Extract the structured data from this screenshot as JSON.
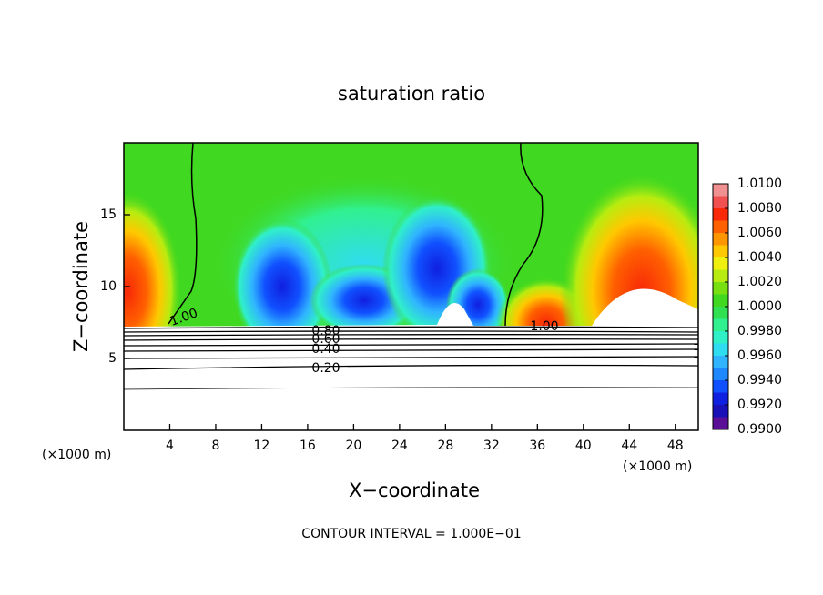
{
  "chart_data": {
    "type": "contour",
    "title": "saturation ratio",
    "x_label": "X−coordinate",
    "y_label": "Z−coordinate",
    "x_unit": "(×1000 m)",
    "y_unit": "(×1000 m)",
    "footnote": "CONTOUR INTERVAL = 1.000E−01",
    "xlim": [
      0,
      50
    ],
    "ylim": [
      0,
      20
    ],
    "xticks": [
      4,
      8,
      12,
      16,
      20,
      24,
      28,
      32,
      36,
      40,
      44,
      48
    ],
    "yticks": [
      5,
      10,
      15
    ],
    "contour_labels": [
      {
        "value": 1,
        "label": "1.00"
      },
      {
        "value": 1,
        "label": "1.00"
      },
      {
        "value": 0.8,
        "label": "0.80"
      },
      {
        "value": 0.6,
        "label": "0.60"
      },
      {
        "value": 0.4,
        "label": "0.40"
      },
      {
        "value": 0.2,
        "label": "0.20"
      }
    ],
    "colorbar": {
      "levels": [
        0.99,
        0.991,
        0.992,
        0.993,
        0.994,
        0.995,
        0.996,
        0.997,
        0.998,
        0.999,
        1.0,
        1.001,
        1.002,
        1.003,
        1.004,
        1.005,
        1.006,
        1.007,
        1.008,
        1.009,
        1.01
      ],
      "colors": [
        "#5a0f96",
        "#1a10b8",
        "#1020e0",
        "#1050ff",
        "#2088ff",
        "#30b4ff",
        "#30dcf0",
        "#30f0c8",
        "#30f090",
        "#30e050",
        "#40d820",
        "#78e010",
        "#b8ec10",
        "#f0f010",
        "#ffc800",
        "#ff9600",
        "#ff6000",
        "#f82808",
        "#f05050",
        "#f09090"
      ],
      "ticks": [
        {
          "value": 1.01,
          "label": "1.0100"
        },
        {
          "value": 1.008,
          "label": "1.0080"
        },
        {
          "value": 1.006,
          "label": "1.0060"
        },
        {
          "value": 1.004,
          "label": "1.0040"
        },
        {
          "value": 1.002,
          "label": "1.0020"
        },
        {
          "value": 1.0,
          "label": "1.0000"
        },
        {
          "value": 0.998,
          "label": "0.9980"
        },
        {
          "value": 0.996,
          "label": "0.9960"
        },
        {
          "value": 0.994,
          "label": "0.9940"
        },
        {
          "value": 0.992,
          "label": "0.9920"
        },
        {
          "value": 0.99,
          "label": "0.9900"
        }
      ]
    }
  }
}
